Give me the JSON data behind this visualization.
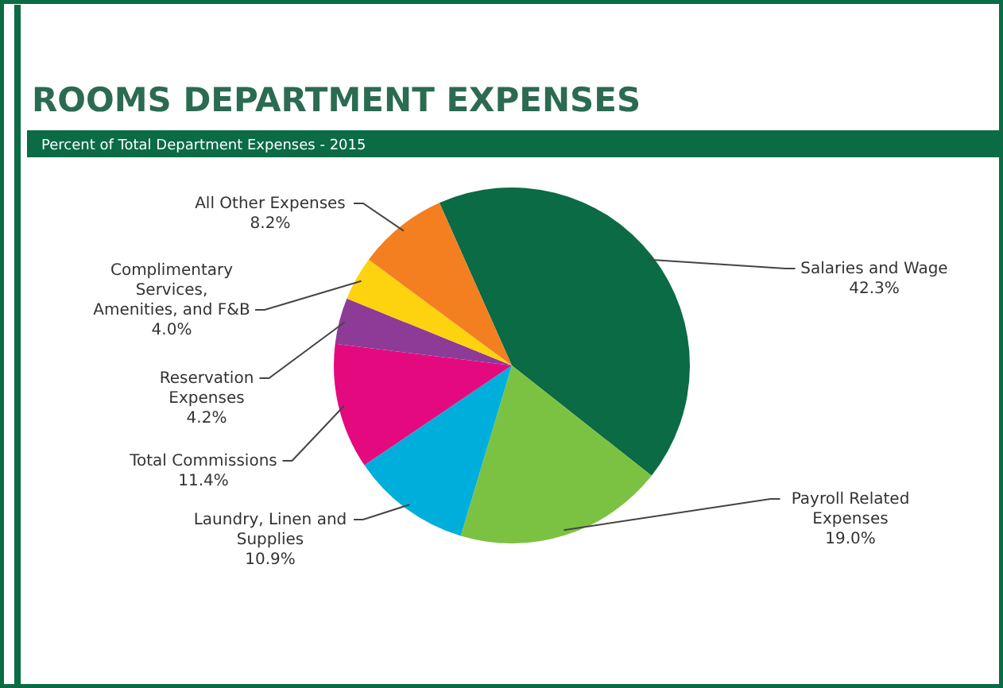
{
  "chart_data": {
    "type": "pie",
    "title": "ROOMS DEPARTMENT EXPENSES",
    "subtitle": "Percent of Total Department Expenses - 2015",
    "categories": [
      "Salaries and Wage",
      "Payroll Related Expenses",
      "Laundry, Linen and Supplies",
      "Total Commissions",
      "Reservation Expenses",
      "Complimentary Services, Amenities, and F&B",
      "All Other Expenses"
    ],
    "values": [
      42.3,
      19.0,
      10.9,
      11.4,
      4.2,
      4.0,
      8.2
    ],
    "value_labels": [
      "42.3%",
      "19.0%",
      "10.9%",
      "11.4%",
      "4.2%",
      "4.0%",
      "8.2%"
    ],
    "colors": [
      "#0a6b45",
      "#7cc242",
      "#00aedb",
      "#e5097f",
      "#8e3b97",
      "#fdd20f",
      "#f37f21"
    ]
  }
}
